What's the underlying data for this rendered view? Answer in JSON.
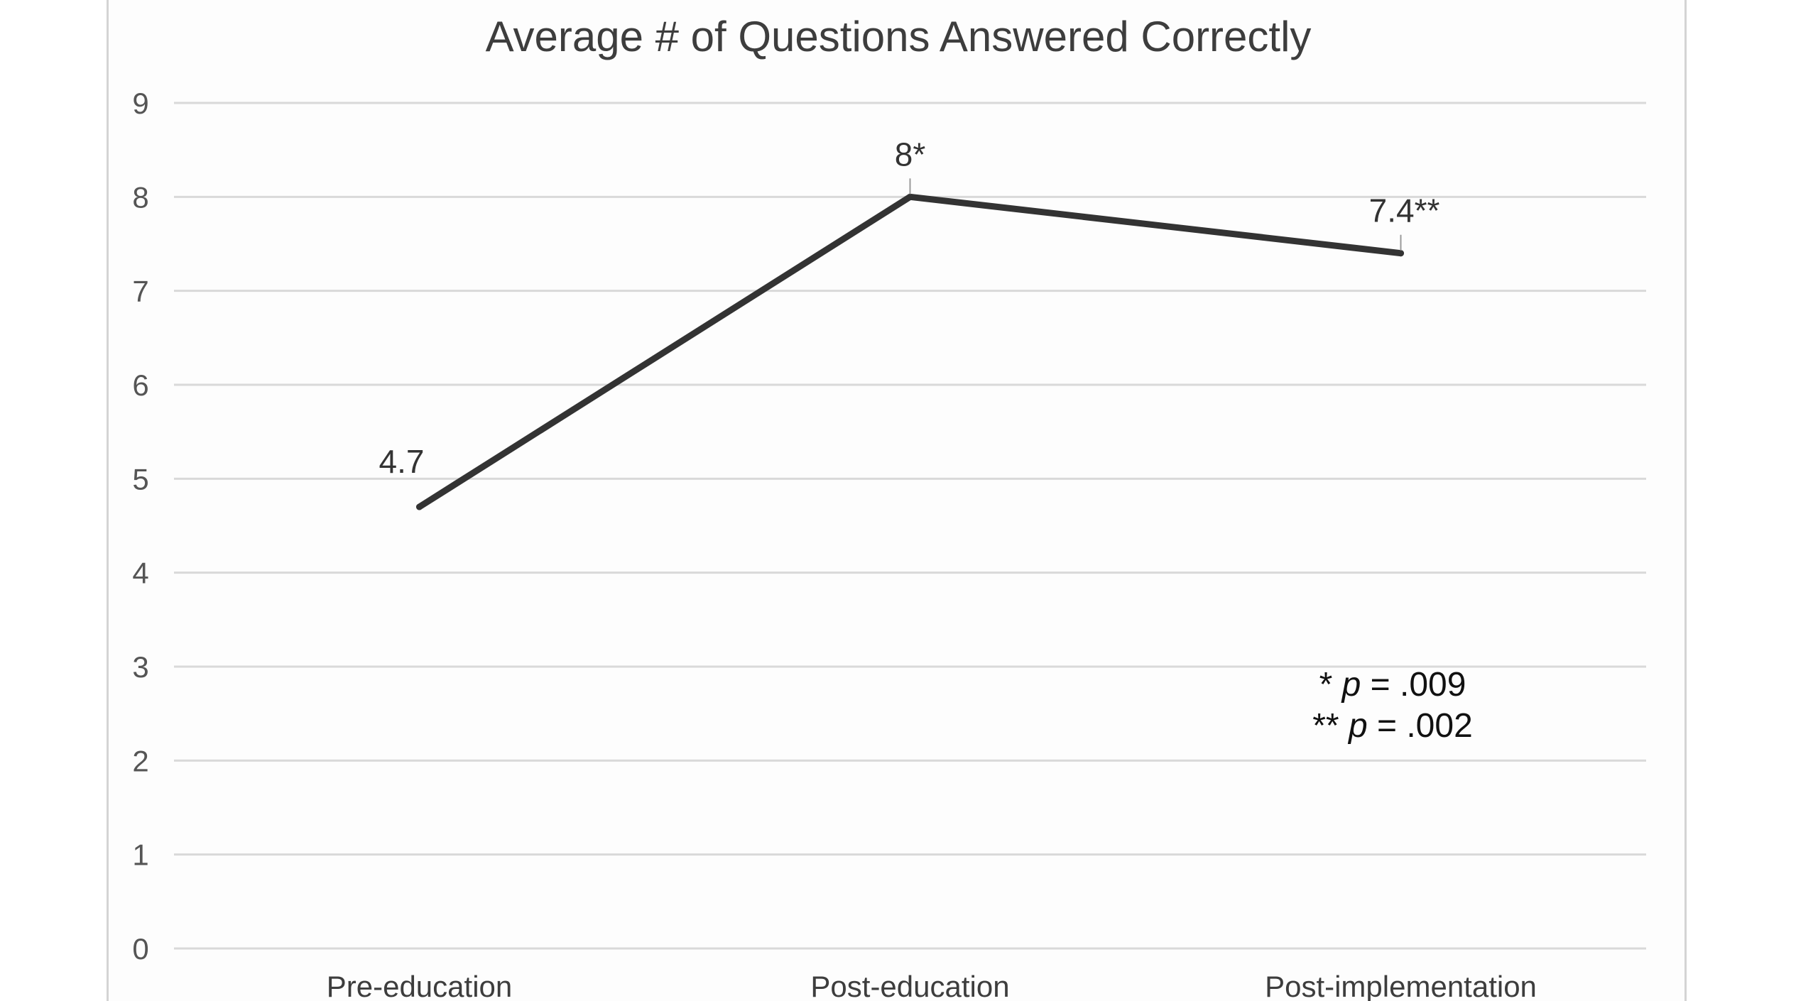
{
  "chart_data": {
    "type": "line",
    "title": "Average # of Questions Answered Correctly",
    "xlabel": "",
    "ylabel": "",
    "categories": [
      "Pre-education",
      "Post-education",
      "Post-implementation"
    ],
    "series": [
      {
        "values": [
          4.7,
          8,
          7.4
        ],
        "data_labels": [
          "4.7",
          "8*",
          "7.4**"
        ],
        "color": "#333333"
      }
    ],
    "ylim": [
      0,
      9
    ],
    "yticks": [
      0,
      1,
      2,
      3,
      4,
      5,
      6,
      7,
      8,
      9
    ],
    "grid": true,
    "legend": "none",
    "annotations": [
      {
        "marker": "* ",
        "p_label": "p",
        "rest": " = .009"
      },
      {
        "marker": "** ",
        "p_label": "p",
        "rest": " = .002"
      }
    ]
  },
  "colors": {
    "line": "#333333",
    "grid": "#d9d9d9",
    "frame": "#d4d4d4"
  }
}
